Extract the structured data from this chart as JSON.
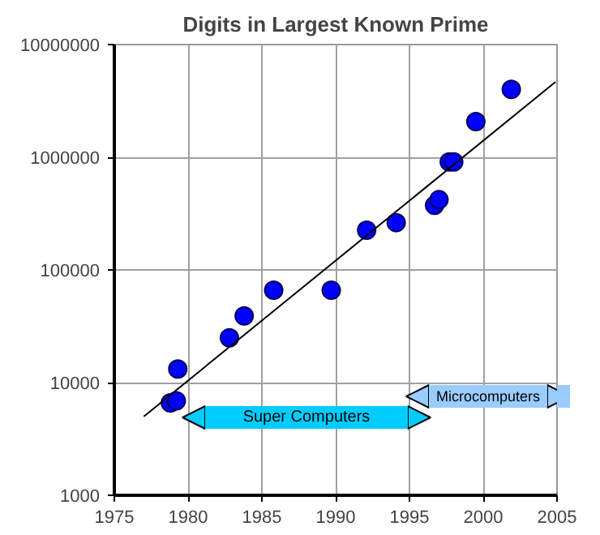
{
  "chart_data": {
    "type": "scatter",
    "title": "Digits in Largest Known Prime",
    "log": "y",
    "grid": true,
    "xlim": [
      1975,
      2005
    ],
    "xticks": [
      1975,
      1980,
      1985,
      1990,
      1995,
      2000,
      2005
    ],
    "ylim": [
      1000,
      10000000
    ],
    "yticks": [
      1000,
      10000,
      100000,
      1000000,
      10000000
    ],
    "series": [
      {
        "marker": "circle",
        "color": "#0000ff",
        "x": [
          1978.8,
          1979.2,
          1979.3,
          1982.8,
          1983.8,
          1985.8,
          1989.7,
          1992.1,
          1994.1,
          1996.7,
          1997.0,
          1997.7,
          1998.0,
          1999.5,
          2001.9
        ],
        "values": [
          6600,
          6900,
          13200,
          25000,
          39000,
          66000,
          66000,
          225000,
          263000,
          374000,
          420000,
          910000,
          910000,
          2070000,
          4000000
        ]
      },
      {
        "type": "line",
        "color": "#000000",
        "x": [
          1977.0,
          2004.9
        ],
        "values": [
          5000,
          4660000
        ]
      }
    ],
    "annotations": [
      "Super Computers",
      "Microcomputers"
    ]
  }
}
